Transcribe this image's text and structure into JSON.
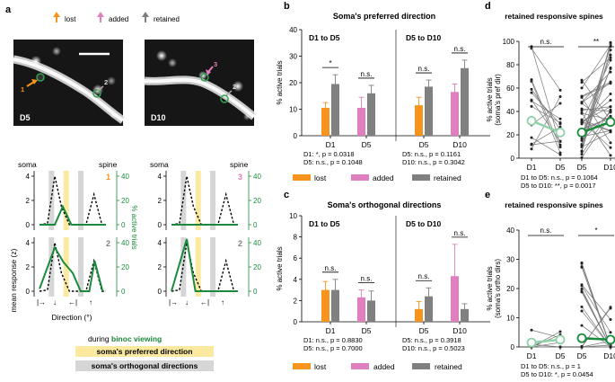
{
  "colors": {
    "lost": "#f7941d",
    "added": "#e07fbe",
    "retained": "#808080",
    "green": "#1a8a3c",
    "lightgreen": "#8fd1a8",
    "yellow": "#fbe9a0",
    "gray": "#d6d6d6"
  },
  "panel_a": {
    "label": "a",
    "legend": {
      "lost": "lost",
      "added": "added",
      "retained": "retained"
    },
    "img_d5_label": "D5",
    "img_d10_label": "D10",
    "spine1": "1",
    "spine2": "2",
    "spine3": "3",
    "soma": "soma",
    "spine": "spine",
    "row1_num_d5": "1",
    "row1_num_d10": "3",
    "row2_num_d5": "2",
    "row2_num_d10": "2",
    "ylabel": "mean response (z)",
    "ylabel_right": "% active trials",
    "ticks_left_top": [
      "4",
      "2",
      "0"
    ],
    "ticks_left_bottom": [
      "4",
      "2",
      "0"
    ],
    "ticks_right": [
      "40",
      "20",
      "0"
    ],
    "xlabel": "Direction (°)",
    "during": "during ",
    "binoc": "binoc viewing",
    "pref_box": "soma's preferred direction",
    "ortho_box": "soma's orthogonal directions"
  },
  "panel_b": {
    "label": "b",
    "title": "Soma's preferred direction",
    "ylabel": "% active trials",
    "left_title": "D1 to D5",
    "right_title": "D5 to D10",
    "yticks": [
      "40",
      "30",
      "20",
      "10",
      "0"
    ],
    "xlabels": [
      "D1",
      "D5",
      "D5",
      "D10"
    ],
    "sig": [
      "*",
      "n.s.",
      "n.s.",
      "n.s."
    ],
    "stats": [
      "D1: *, p = 0.0318",
      "D5: n.s., p = 0.1048",
      "D5: n.s., p = 0.1161",
      "D10: n.s., p = 0.3042"
    ]
  },
  "panel_c": {
    "label": "c",
    "title": "Soma's orthogonal directions",
    "ylabel": "% active trials",
    "left_title": "D1 to D5",
    "right_title": "D5 to D10",
    "yticks": [
      "10",
      "8",
      "6",
      "4",
      "2",
      "0"
    ],
    "xlabels": [
      "D1",
      "D5",
      "D5",
      "D10"
    ],
    "sig": [
      "n.s.",
      "n.s.",
      "n.s.",
      "n.s."
    ],
    "stats": [
      "D1: n.s., p = 0.8830",
      "D5: n.s., p = 0.7000",
      "D5: n.s., p = 0.3918",
      "D10: n.s., p = 0.5023"
    ],
    "legend": {
      "lost": "lost",
      "added": "added",
      "retained": "retained"
    }
  },
  "panel_d": {
    "label": "d",
    "title": "retained responsive spines",
    "ylabel1": "% active trials",
    "ylabel2": "(soma's pref dir)",
    "yticks": [
      "100",
      "80",
      "60",
      "40",
      "20",
      "0"
    ],
    "xlabels": [
      "D1",
      "D5",
      "D5",
      "D10"
    ],
    "sig": [
      "n.s.",
      "**"
    ],
    "stats": [
      "D1 to D5: n.s., p = 0.1064",
      "D5 to D10: **, p = 0.0017"
    ]
  },
  "panel_e": {
    "label": "e",
    "title": "retained responsive spines",
    "ylabel1": "% active trials",
    "ylabel2": "(soma's ortho dirs)",
    "yticks": [
      "40",
      "30",
      "20",
      "10",
      "0"
    ],
    "xlabels": [
      "D1",
      "D5",
      "D5",
      "D10"
    ],
    "sig": [
      "n.s.",
      "*"
    ],
    "stats": [
      "D1 to D5: n.s., p = 1",
      "D5 to D10: *, p = 0.0454"
    ]
  },
  "chart_data": [
    {
      "type": "line",
      "id": "a-curves",
      "title": "mean response (z) / % active trials vs direction",
      "x": [
        "0",
        "90",
        "180",
        "270",
        "0"
      ],
      "ylim_left": [
        0,
        4
      ],
      "ylim_right": [
        0,
        40
      ],
      "series": [
        {
          "name": "D5 spine1 soma",
          "values": [
            0,
            4,
            0,
            0,
            2.5
          ]
        },
        {
          "name": "D5 spine1 % active",
          "values": [
            0,
            0,
            1.5,
            0,
            0
          ]
        },
        {
          "name": "D10 spine3 soma",
          "values": [
            0,
            4,
            0,
            0,
            2.5
          ]
        },
        {
          "name": "D5 spine2 soma",
          "values": [
            0,
            4,
            0,
            0,
            2.5
          ]
        },
        {
          "name": "D5 spine2 % active",
          "values": [
            0,
            3.8,
            2,
            0,
            2
          ]
        },
        {
          "name": "D10 spine2 % active",
          "values": [
            0,
            4.5,
            0,
            0,
            0
          ]
        }
      ]
    },
    {
      "type": "bar",
      "id": "b",
      "title": "Soma's preferred direction",
      "ylabel": "% active trials",
      "ylim": [
        0,
        40
      ],
      "groups": [
        {
          "name": "D1 to D5",
          "categories": [
            "D1",
            "D5"
          ],
          "series": [
            {
              "name": "lost",
              "values": [
                10.5,
                null
              ]
            },
            {
              "name": "added",
              "values": [
                null,
                10.5
              ]
            },
            {
              "name": "retained",
              "values": [
                19.5,
                16
              ]
            }
          ],
          "errors": [
            [
              2,
              3.5
            ],
            [
              4,
              3
            ]
          ]
        },
        {
          "name": "D5 to D10",
          "categories": [
            "D5",
            "D10"
          ],
          "series": [
            {
              "name": "lost",
              "values": [
                11.5,
                null
              ]
            },
            {
              "name": "added",
              "values": [
                null,
                16.5
              ]
            },
            {
              "name": "retained",
              "values": [
                18.5,
                25.5
              ]
            }
          ],
          "errors": [
            [
              3,
              2.5
            ],
            [
              3,
              3
            ]
          ]
        }
      ]
    },
    {
      "type": "bar",
      "id": "c",
      "title": "Soma's orthogonal directions",
      "ylabel": "% active trials",
      "ylim": [
        0,
        10
      ],
      "groups": [
        {
          "name": "D1 to D5",
          "categories": [
            "D1",
            "D5"
          ],
          "series": [
            {
              "name": "lost",
              "values": [
                3.0,
                null
              ]
            },
            {
              "name": "added",
              "values": [
                null,
                2.3
              ]
            },
            {
              "name": "retained",
              "values": [
                3.0,
                2.0
              ]
            }
          ],
          "errors": [
            [
              0.8,
              1.0
            ],
            [
              0.7,
              0.9
            ]
          ]
        },
        {
          "name": "D5 to D10",
          "categories": [
            "D5",
            "D10"
          ],
          "series": [
            {
              "name": "lost",
              "values": [
                1.2,
                null
              ]
            },
            {
              "name": "added",
              "values": [
                null,
                4.3
              ]
            },
            {
              "name": "retained",
              "values": [
                2.4,
                1.2
              ]
            }
          ],
          "errors": [
            [
              0.7,
              0.8
            ],
            [
              3.0,
              0.5
            ]
          ]
        }
      ]
    },
    {
      "type": "scatter",
      "id": "d",
      "title": "retained responsive spines",
      "ylabel": "% active trials (soma's pref dir)",
      "ylim": [
        0,
        100
      ],
      "means": {
        "D1": 32,
        "D5": 22,
        "D5b": 22,
        "D10": 31
      }
    },
    {
      "type": "scatter",
      "id": "e",
      "title": "retained responsive spines",
      "ylabel": "% active trials (soma's ortho dirs)",
      "ylim": [
        0,
        40
      ],
      "means": {
        "D1": 1.5,
        "D5": 2.5,
        "D5b": 3,
        "D10": 2.5
      }
    }
  ]
}
